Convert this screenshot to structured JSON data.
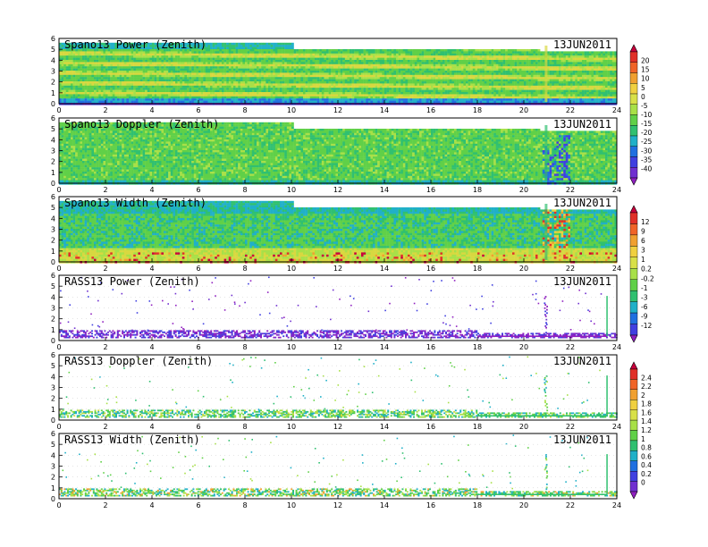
{
  "chart_data": {
    "type": "heatmap",
    "x_range": [
      0,
      24
    ],
    "y_range": [
      0,
      6
    ],
    "x_ticks": [
      "0",
      "2",
      "4",
      "6",
      "8",
      "10",
      "12",
      "14",
      "16",
      "18",
      "20",
      "22",
      "24"
    ],
    "y_ticks": [
      "0",
      "1",
      "2",
      "3",
      "4",
      "5",
      "6"
    ],
    "panels": [
      {
        "title": "Spano13 Power (Zenith)",
        "date": "13JUN2011",
        "style": "spano-power",
        "colorbar": 0
      },
      {
        "title": "Spano13 Doppler (Zenith)",
        "date": "13JUN2011",
        "style": "spano-doppler",
        "colorbar": 0
      },
      {
        "title": "Spano13 Width (Zenith)",
        "date": "13JUN2011",
        "style": "spano-width",
        "colorbar": 1
      },
      {
        "title": "RASS13 Power (Zenith)",
        "date": "13JUN2011",
        "style": "rass-power",
        "colorbar": 1
      },
      {
        "title": "RASS13 Doppler (Zenith)",
        "date": "13JUN2011",
        "style": "rass-doppler",
        "colorbar": 2
      },
      {
        "title": "RASS13 Width (Zenith)",
        "date": "13JUN2011",
        "style": "rass-width",
        "colorbar": 2
      }
    ],
    "colorbars": [
      {
        "labels": [
          "20",
          "15",
          "10",
          "5",
          "0",
          "-5",
          "-10",
          "-15",
          "-20",
          "-25",
          "-30",
          "-35",
          "-40"
        ],
        "colors": [
          "#c8003c",
          "#e03028",
          "#f06428",
          "#f0a030",
          "#f0d040",
          "#d8e048",
          "#a8e048",
          "#60d048",
          "#30c070",
          "#20b0c8",
          "#2070e0",
          "#4040e0",
          "#7030d0",
          "#9020c0"
        ]
      },
      {
        "labels": [
          "12",
          "9",
          "6",
          "3",
          "1",
          "0.2",
          "-0.2",
          "-1",
          "-3",
          "-6",
          "-9",
          "-12"
        ],
        "colors": [
          "#c8003c",
          "#e03028",
          "#f06428",
          "#f0a030",
          "#f0d040",
          "#d8e048",
          "#a8e048",
          "#60d048",
          "#30c070",
          "#20b0c8",
          "#2070e0",
          "#4040e0",
          "#9020c0"
        ]
      },
      {
        "labels": [
          "2.4",
          "2.2",
          "2",
          "1.8",
          "1.6",
          "1.4",
          "1.2",
          "1",
          "0.8",
          "0.6",
          "0.4",
          "0.2",
          "0"
        ],
        "colors": [
          "#c8003c",
          "#e03028",
          "#f06428",
          "#f0a030",
          "#f0d040",
          "#d8e048",
          "#a8e048",
          "#60d048",
          "#30c070",
          "#20b0c8",
          "#2070e0",
          "#4040e0",
          "#7030d0",
          "#9020c0"
        ]
      }
    ]
  }
}
